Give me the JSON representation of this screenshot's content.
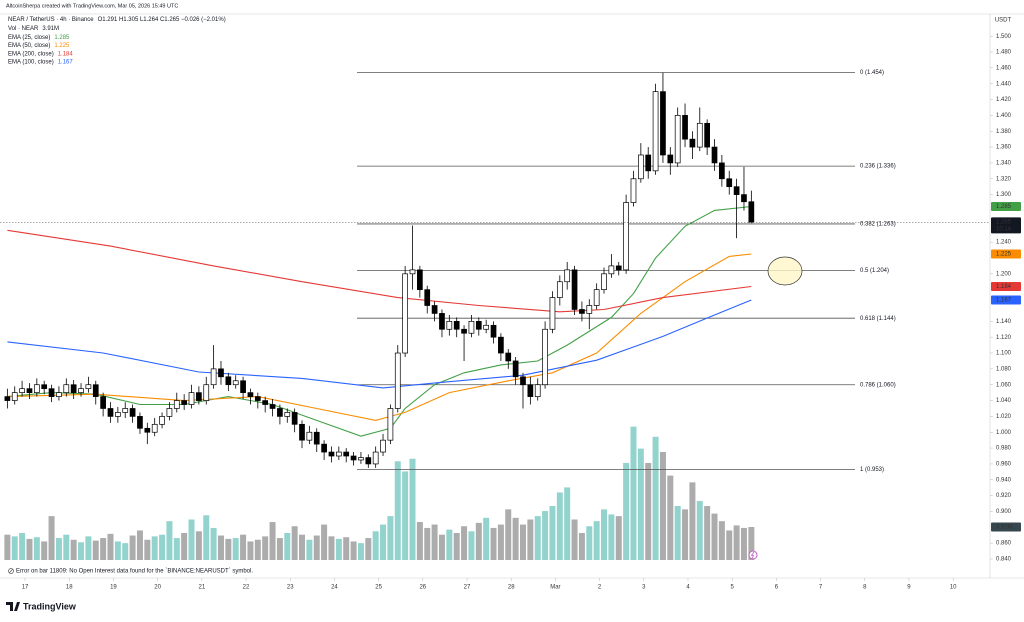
{
  "chart_data": {
    "type": "candlestick",
    "credit": "AltcoinSherpa created with TradingView.com, Mar 05, 2026 15:49 UTC",
    "title": "NEAR / TetherUS · 4h · Binance",
    "ohlc_caption": "O1.291 H1.305 L1.264 C1.265 −0.026 (−2.01%)",
    "currency": "USDT",
    "countdown": "10:14",
    "up_color": "#ffffff",
    "down_color": "#000000",
    "open": [
      1.045,
      1.04,
      1.05,
      1.055,
      1.05,
      1.06,
      1.055,
      1.045,
      1.05,
      1.06,
      1.05,
      1.055,
      1.06,
      1.045,
      1.03,
      1.02,
      1.025,
      1.03,
      1.02,
      1.005,
      1.0,
      1.01,
      1.02,
      1.03,
      1.04,
      1.035,
      1.05,
      1.04,
      1.06,
      1.08,
      1.07,
      1.06,
      1.065,
      1.05,
      1.045,
      1.04,
      1.035,
      1.03,
      1.02,
      1.025,
      1.01,
      0.99,
      1.0,
      0.985,
      0.975,
      0.97,
      0.975,
      0.97,
      0.965,
      0.968,
      0.96,
      0.975,
      0.99,
      1.03,
      1.1,
      1.2,
      1.205,
      1.18,
      1.16,
      1.15,
      1.13,
      1.14,
      1.13,
      1.125,
      1.14,
      1.13,
      1.135,
      1.12,
      1.1,
      1.09,
      1.07,
      1.06,
      1.045,
      1.06,
      1.13,
      1.17,
      1.19,
      1.205,
      1.155,
      1.15,
      1.16,
      1.18,
      1.2,
      1.21,
      1.205,
      1.29,
      1.32,
      1.35,
      1.33,
      1.43,
      1.35,
      1.34,
      1.4,
      1.37,
      1.36,
      1.39,
      1.36,
      1.34,
      1.32,
      1.31,
      1.3,
      1.291
    ],
    "high": [
      1.055,
      1.058,
      1.065,
      1.062,
      1.068,
      1.065,
      1.06,
      1.058,
      1.068,
      1.066,
      1.062,
      1.07,
      1.065,
      1.05,
      1.038,
      1.032,
      1.038,
      1.035,
      1.025,
      1.012,
      1.018,
      1.025,
      1.038,
      1.05,
      1.048,
      1.06,
      1.058,
      1.07,
      1.11,
      1.09,
      1.075,
      1.072,
      1.07,
      1.055,
      1.05,
      1.045,
      1.042,
      1.035,
      1.03,
      1.03,
      1.015,
      1.008,
      1.005,
      0.99,
      0.982,
      0.982,
      0.98,
      0.975,
      0.975,
      0.972,
      0.982,
      0.998,
      1.035,
      1.11,
      1.21,
      1.261,
      1.21,
      1.185,
      1.165,
      1.155,
      1.148,
      1.145,
      1.135,
      1.148,
      1.145,
      1.142,
      1.14,
      1.125,
      1.105,
      1.095,
      1.075,
      1.07,
      1.068,
      1.14,
      1.178,
      1.198,
      1.215,
      1.21,
      1.165,
      1.168,
      1.188,
      1.208,
      1.225,
      1.215,
      1.3,
      1.33,
      1.365,
      1.36,
      1.44,
      1.454,
      1.36,
      1.41,
      1.415,
      1.38,
      1.41,
      1.395,
      1.37,
      1.35,
      1.33,
      1.32,
      1.335,
      1.305
    ],
    "low": [
      1.03,
      1.035,
      1.045,
      1.042,
      1.045,
      1.048,
      1.038,
      1.04,
      1.045,
      1.042,
      1.045,
      1.05,
      1.035,
      1.02,
      1.012,
      1.012,
      1.018,
      1.012,
      0.998,
      0.985,
      0.995,
      1.005,
      1.015,
      1.025,
      1.028,
      1.03,
      1.035,
      1.035,
      1.055,
      1.06,
      1.052,
      1.055,
      1.042,
      1.035,
      1.03,
      1.025,
      1.02,
      1.01,
      1.012,
      1.0,
      0.98,
      0.985,
      0.975,
      0.965,
      0.962,
      0.965,
      0.962,
      0.958,
      0.96,
      0.955,
      0.955,
      0.97,
      0.985,
      1.025,
      1.095,
      1.18,
      1.17,
      1.15,
      1.14,
      1.12,
      1.122,
      1.12,
      1.09,
      1.12,
      1.122,
      1.125,
      1.112,
      1.09,
      1.08,
      1.06,
      1.03,
      1.035,
      1.04,
      1.055,
      1.125,
      1.16,
      1.18,
      1.148,
      1.14,
      1.13,
      1.155,
      1.175,
      1.195,
      1.198,
      1.2,
      1.285,
      1.315,
      1.32,
      1.325,
      1.34,
      1.325,
      1.335,
      1.36,
      1.345,
      1.355,
      1.35,
      1.33,
      1.31,
      1.3,
      1.245,
      1.28,
      1.264
    ],
    "close": [
      1.04,
      1.05,
      1.055,
      1.05,
      1.06,
      1.055,
      1.045,
      1.05,
      1.06,
      1.05,
      1.055,
      1.06,
      1.045,
      1.03,
      1.02,
      1.025,
      1.03,
      1.02,
      1.005,
      1.0,
      1.01,
      1.02,
      1.03,
      1.04,
      1.035,
      1.05,
      1.04,
      1.06,
      1.08,
      1.07,
      1.06,
      1.065,
      1.05,
      1.045,
      1.04,
      1.035,
      1.03,
      1.02,
      1.025,
      1.01,
      0.99,
      1.0,
      0.985,
      0.975,
      0.97,
      0.975,
      0.97,
      0.965,
      0.968,
      0.96,
      0.975,
      0.99,
      1.03,
      1.1,
      1.2,
      1.205,
      1.18,
      1.16,
      1.15,
      1.13,
      1.14,
      1.13,
      1.125,
      1.14,
      1.13,
      1.135,
      1.12,
      1.1,
      1.09,
      1.07,
      1.06,
      1.045,
      1.06,
      1.13,
      1.17,
      1.19,
      1.205,
      1.155,
      1.15,
      1.16,
      1.18,
      1.2,
      1.21,
      1.205,
      1.29,
      1.32,
      1.35,
      1.33,
      1.43,
      1.35,
      1.34,
      1.4,
      1.37,
      1.36,
      1.39,
      1.36,
      1.34,
      1.32,
      1.31,
      1.3,
      1.291,
      1.265
    ],
    "volume": {
      "name": "Vol · NEAR",
      "last_label": "3.91M",
      "up_color": "#80cbc4",
      "down_color": "#9e9e9e",
      "badge_color": "#37474f",
      "ylim": [
        0,
        64.7
      ],
      "values": [
        3.0,
        2.8,
        3.2,
        2.5,
        2.7,
        2.2,
        5.2,
        2.6,
        3.0,
        2.4,
        2.1,
        2.8,
        2.3,
        2.6,
        3.1,
        2.2,
        2.0,
        2.9,
        3.5,
        2.4,
        2.8,
        3.0,
        4.6,
        2.6,
        3.2,
        4.8,
        3.4,
        5.3,
        3.8,
        2.9,
        2.5,
        2.6,
        3.0,
        2.2,
        2.4,
        2.8,
        4.5,
        2.6,
        3.2,
        4.0,
        3.0,
        2.4,
        2.9,
        4.2,
        2.8,
        2.5,
        2.7,
        2.2,
        2.0,
        2.6,
        3.4,
        4.2,
        5.2,
        11.7,
        10.5,
        12.0,
        4.5,
        3.8,
        4.2,
        3.0,
        3.6,
        3.2,
        4.0,
        3.4,
        4.4,
        5.0,
        3.8,
        4.2,
        6.0,
        5.0,
        4.2,
        4.8,
        5.2,
        5.8,
        6.4,
        8.0,
        8.6,
        4.8,
        3.2,
        4.0,
        4.6,
        6.0,
        5.4,
        5.2,
        11.5,
        15.8,
        13.2,
        11.5,
        14.6,
        12.8,
        10.0,
        6.4,
        6.0,
        9.2,
        7.0,
        6.4,
        5.5,
        4.6,
        3.5,
        4.1,
        3.8,
        3.91
      ]
    },
    "series": [
      {
        "name": "EMA (25, close)",
        "color": "#43a047",
        "x": [
          0,
          6,
          12,
          18,
          24,
          30,
          36,
          42,
          48,
          52,
          54,
          58,
          62,
          67,
          72,
          76,
          82,
          85,
          88,
          92,
          96,
          101
        ],
        "values": [
          1.045,
          1.05,
          1.048,
          1.035,
          1.035,
          1.045,
          1.035,
          1.015,
          0.995,
          1.005,
          1.03,
          1.06,
          1.075,
          1.085,
          1.09,
          1.11,
          1.145,
          1.175,
          1.22,
          1.26,
          1.28,
          1.285
        ]
      },
      {
        "name": "EMA (50, close)",
        "color": "#fb8c00",
        "x": [
          0,
          12,
          24,
          34,
          42,
          50,
          54,
          60,
          68,
          74,
          80,
          86,
          92,
          98,
          101
        ],
        "values": [
          1.045,
          1.048,
          1.04,
          1.045,
          1.03,
          1.015,
          1.025,
          1.05,
          1.065,
          1.075,
          1.1,
          1.15,
          1.19,
          1.222,
          1.225
        ]
      },
      {
        "name": "EMA (200, close)",
        "color": "#e53935",
        "x": [
          0,
          14,
          28,
          40,
          53,
          64,
          75,
          81,
          89,
          101
        ],
        "values": [
          1.255,
          1.235,
          1.21,
          1.19,
          1.17,
          1.16,
          1.152,
          1.155,
          1.17,
          1.184
        ]
      },
      {
        "name": "EMA (100, close)",
        "color": "#2962ff",
        "x": [
          0,
          13,
          26,
          40,
          51,
          59,
          70,
          80,
          89,
          96,
          101
        ],
        "values": [
          1.114,
          1.1,
          1.076,
          1.068,
          1.056,
          1.063,
          1.072,
          1.091,
          1.121,
          1.148,
          1.167
        ]
      }
    ],
    "fib_color": "#555555",
    "fib_levels": [
      {
        "label": "0 (1.454)",
        "value": 1.454
      },
      {
        "label": "0.236 (1.336)",
        "value": 1.336
      },
      {
        "label": "0.382 (1.263)",
        "value": 1.263
      },
      {
        "label": "0.5 (1.204)",
        "value": 1.204
      },
      {
        "label": "0.618 (1.144)",
        "value": 1.144
      },
      {
        "label": "0.786 (1.060)",
        "value": 1.06
      },
      {
        "label": "1 (0.953)",
        "value": 0.953
      }
    ],
    "xlim": [
      -1,
      133.4
    ],
    "xticks": [
      {
        "value": 2.4,
        "label": "17"
      },
      {
        "value": 8.4,
        "label": "18"
      },
      {
        "value": 14.4,
        "label": "19"
      },
      {
        "value": 20.4,
        "label": "20"
      },
      {
        "value": 26.4,
        "label": "21"
      },
      {
        "value": 32.4,
        "label": "22"
      },
      {
        "value": 38.4,
        "label": "23"
      },
      {
        "value": 44.4,
        "label": "24"
      },
      {
        "value": 50.4,
        "label": "25"
      },
      {
        "value": 56.4,
        "label": "26"
      },
      {
        "value": 62.4,
        "label": "27"
      },
      {
        "value": 68.4,
        "label": "28"
      },
      {
        "value": 74.4,
        "label": "Mar"
      },
      {
        "value": 80.4,
        "label": "2"
      },
      {
        "value": 86.4,
        "label": "3"
      },
      {
        "value": 92.4,
        "label": "4"
      },
      {
        "value": 98.4,
        "label": "5"
      },
      {
        "value": 104.4,
        "label": "6"
      },
      {
        "value": 110.4,
        "label": "7"
      },
      {
        "value": 116.4,
        "label": "8"
      },
      {
        "value": 122.4,
        "label": "9"
      },
      {
        "value": 128.4,
        "label": "10"
      }
    ],
    "ylim": [
      0.816,
      1.528
    ],
    "yticks": [
      {
        "value": 0.84,
        "label": "0.840"
      },
      {
        "value": 0.86,
        "label": "0.860"
      },
      {
        "value": 0.9,
        "label": "0.900"
      },
      {
        "value": 0.92,
        "label": "0.920"
      },
      {
        "value": 0.94,
        "label": "0.940"
      },
      {
        "value": 0.96,
        "label": "0.960"
      },
      {
        "value": 0.98,
        "label": "0.980"
      },
      {
        "value": 1.0,
        "label": "1.000"
      },
      {
        "value": 1.02,
        "label": "1.020"
      },
      {
        "value": 1.04,
        "label": "1.040"
      },
      {
        "value": 1.06,
        "label": "1.060"
      },
      {
        "value": 1.08,
        "label": "1.080"
      },
      {
        "value": 1.1,
        "label": "1.100"
      },
      {
        "value": 1.12,
        "label": "1.120"
      },
      {
        "value": 1.14,
        "label": "1.140"
      },
      {
        "value": 1.2,
        "label": "1.200"
      },
      {
        "value": 1.24,
        "label": "1.240"
      },
      {
        "value": 1.3,
        "label": "1.300"
      },
      {
        "value": 1.32,
        "label": "1.320"
      },
      {
        "value": 1.34,
        "label": "1.340"
      },
      {
        "value": 1.36,
        "label": "1.360"
      },
      {
        "value": 1.38,
        "label": "1.380"
      },
      {
        "value": 1.4,
        "label": "1.400"
      },
      {
        "value": 1.42,
        "label": "1.420"
      },
      {
        "value": 1.44,
        "label": "1.440"
      },
      {
        "value": 1.46,
        "label": "1.460"
      },
      {
        "value": 1.48,
        "label": "1.480"
      },
      {
        "value": 1.5,
        "label": "1.500"
      }
    ],
    "grid": false,
    "footer_note": "Error on bar 11809: No Open Interest data found for the `BINANCE:NEARUSDT` symbol.",
    "brand": "TradingView"
  }
}
